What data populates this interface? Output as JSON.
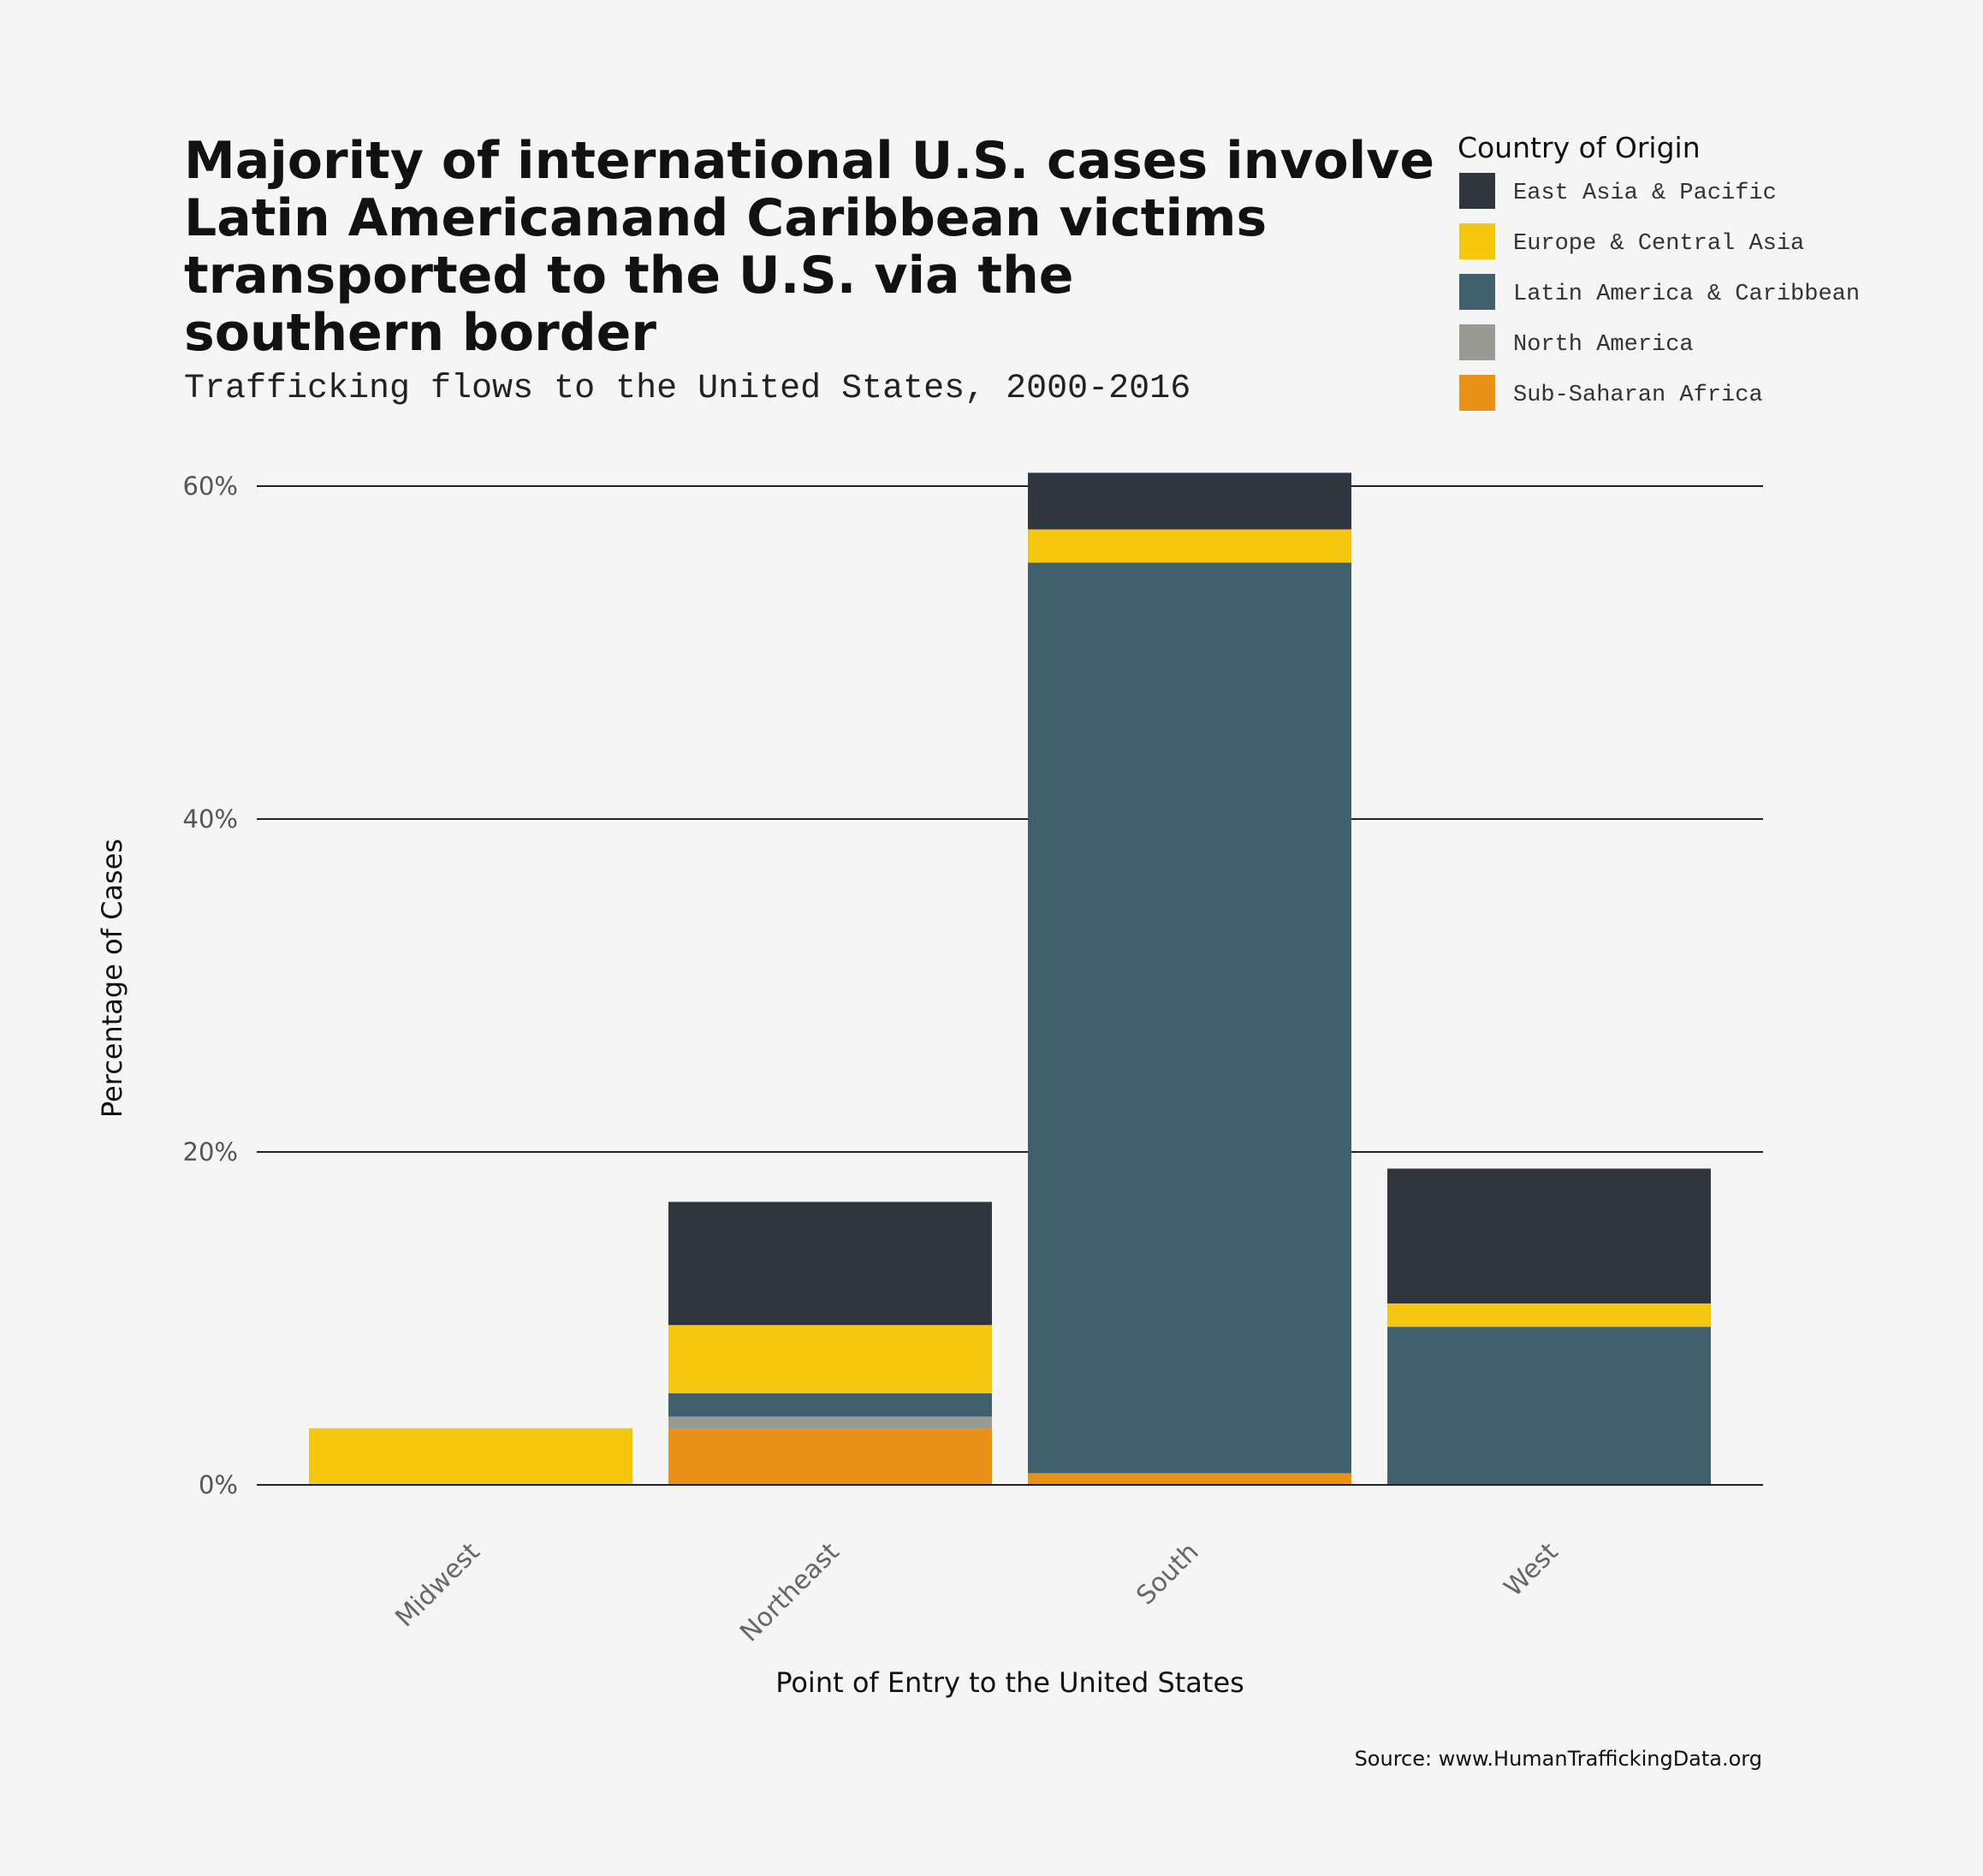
{
  "chart_data": {
    "type": "bar",
    "stacked": true,
    "title_lines": [
      "Majority of international U.S. cases involve",
      "Latin Americanand Caribbean victims",
      "transported to the U.S. via the",
      "southern border"
    ],
    "subtitle": "Trafficking flows to the United States, 2000-2016",
    "xlabel": "Point of Entry to the United States",
    "ylabel": "Percentage of Cases",
    "source": "Source: www.HumanTraffickingData.org",
    "legend": {
      "title": "Country of Origin",
      "placement": "top-right"
    },
    "ylim": [
      0,
      60
    ],
    "yticks": [
      0,
      20,
      40,
      60
    ],
    "ytick_labels": [
      "0%",
      "20%",
      "40%",
      "60%"
    ],
    "grid": true,
    "categories": [
      "Midwest",
      "Northeast",
      "South",
      "West"
    ],
    "series": [
      {
        "name": "Sub-Saharan Africa",
        "color": "#e89217",
        "values": [
          0,
          3.4,
          0.7,
          0
        ]
      },
      {
        "name": "North America",
        "color": "#9a9a95",
        "values": [
          0,
          0.7,
          0,
          0
        ]
      },
      {
        "name": "Latin America & Caribbean",
        "color": "#41606e",
        "values": [
          0,
          1.4,
          54.7,
          9.5
        ]
      },
      {
        "name": "Europe & Central Asia",
        "color": "#f5c710",
        "values": [
          3.4,
          4.1,
          2.0,
          1.4
        ]
      },
      {
        "name": "East Asia & Pacific",
        "color": "#2f3640",
        "values": [
          0,
          7.4,
          3.4,
          8.1
        ]
      }
    ],
    "legend_order": [
      "East Asia & Pacific",
      "Europe & Central Asia",
      "Latin America & Caribbean",
      "North America",
      "Sub-Saharan Africa"
    ]
  }
}
